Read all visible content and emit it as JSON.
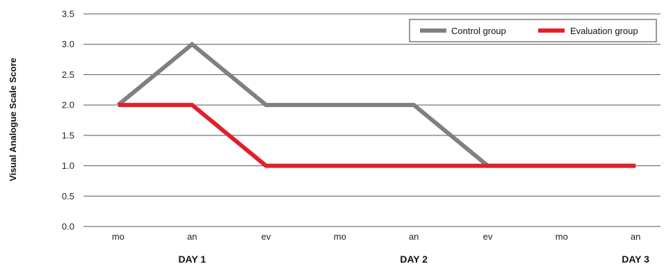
{
  "chart_data": {
    "type": "line",
    "ylabel": "Visual Analogue Scale Score",
    "ylim": [
      0,
      3.5
    ],
    "yticks": [
      "0.0",
      "0.5",
      "1.0",
      "1.5",
      "2.0",
      "2.5",
      "3.0",
      "3.5"
    ],
    "categories": [
      "mo",
      "an",
      "ev",
      "mo",
      "an",
      "ev",
      "mo",
      "an"
    ],
    "day_labels": [
      {
        "label": "DAY 1",
        "category_index": 1
      },
      {
        "label": "DAY 2",
        "category_index": 4
      },
      {
        "label": "DAY 3",
        "category_index": 7
      }
    ],
    "grid": "horizontal",
    "legend_position": "top-right",
    "series": [
      {
        "name": "Control group",
        "color": "#808080",
        "values": [
          2.0,
          3.0,
          2.0,
          2.0,
          2.0,
          1.0,
          1.0,
          1.0
        ]
      },
      {
        "name": "Evaluation group",
        "color": "#e0202a",
        "values": [
          2.0,
          2.0,
          1.0,
          1.0,
          1.0,
          1.0,
          1.0,
          1.0
        ]
      }
    ]
  }
}
